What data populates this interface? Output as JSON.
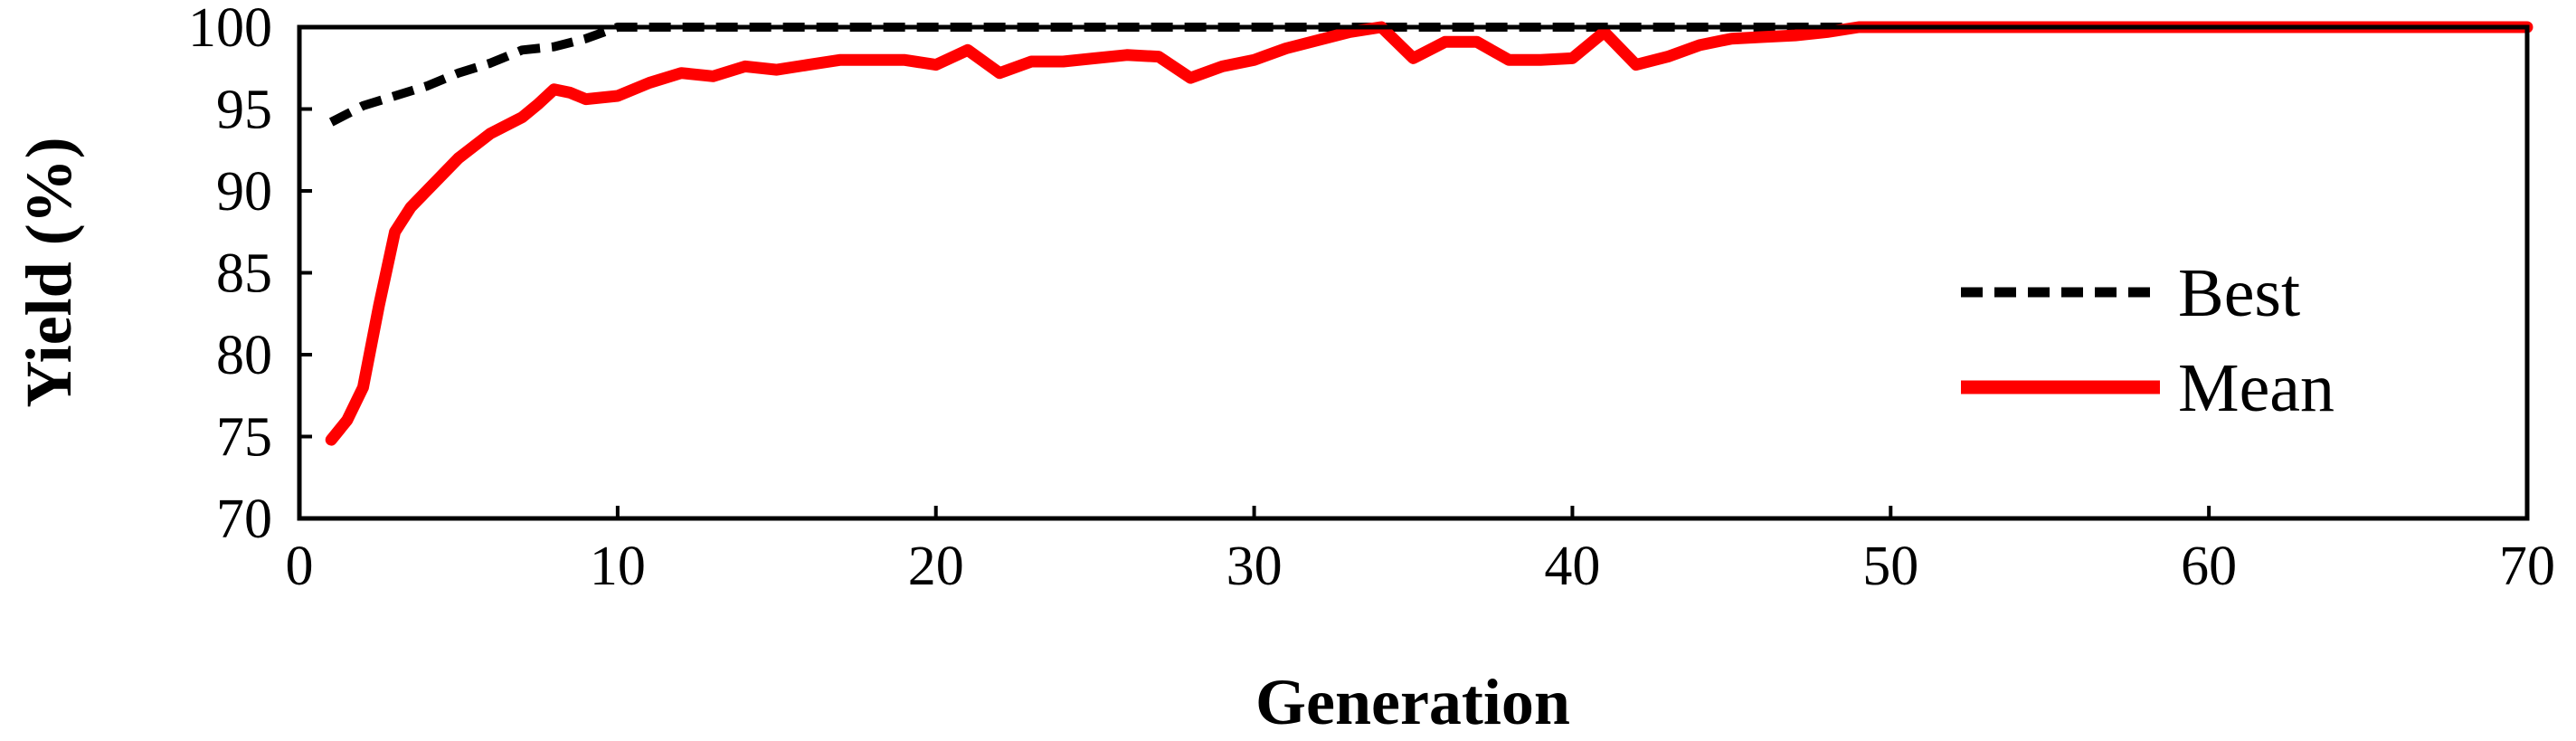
{
  "colors": {
    "best": "#000000",
    "mean": "#ff0000",
    "axis": "#000000",
    "background": "#ffffff"
  },
  "chart_data": {
    "type": "line",
    "title": "",
    "xlabel": "Generation",
    "ylabel": "Yield (%)",
    "xlim": [
      0,
      70
    ],
    "ylim": [
      70,
      100
    ],
    "xticks": [
      0,
      10,
      20,
      30,
      40,
      50,
      60,
      70
    ],
    "yticks": [
      70,
      75,
      80,
      85,
      90,
      95,
      100
    ],
    "grid": false,
    "legend": "right",
    "series": [
      {
        "name": "Best",
        "style": "dashed",
        "color": "#000000",
        "points": [
          [
            1,
            94.2
          ],
          [
            2,
            95.2
          ],
          [
            3,
            95.8
          ],
          [
            4,
            96.4
          ],
          [
            5,
            97.2
          ],
          [
            6,
            97.8
          ],
          [
            7,
            98.6
          ],
          [
            8,
            98.8
          ],
          [
            9,
            99.3
          ],
          [
            10,
            100
          ],
          [
            12,
            100
          ],
          [
            20,
            100
          ],
          [
            30,
            100
          ],
          [
            40,
            100
          ],
          [
            48,
            100
          ],
          [
            50,
            100
          ]
        ]
      },
      {
        "name": "Mean",
        "style": "solid",
        "color": "#ff0000",
        "points": [
          [
            1,
            74.8
          ],
          [
            1.5,
            76.0
          ],
          [
            2,
            78.0
          ],
          [
            2.5,
            83.0
          ],
          [
            3,
            87.5
          ],
          [
            3.5,
            89.0
          ],
          [
            4,
            90.0
          ],
          [
            5,
            92.0
          ],
          [
            6,
            93.5
          ],
          [
            7,
            94.5
          ],
          [
            7.5,
            95.3
          ],
          [
            8,
            96.2
          ],
          [
            8.5,
            96.0
          ],
          [
            9,
            95.6
          ],
          [
            10,
            95.8
          ],
          [
            11,
            96.6
          ],
          [
            12,
            97.2
          ],
          [
            13,
            97.0
          ],
          [
            14,
            97.6
          ],
          [
            15,
            97.4
          ],
          [
            16,
            97.7
          ],
          [
            17,
            98.0
          ],
          [
            18,
            98.0
          ],
          [
            19,
            98.0
          ],
          [
            20,
            97.7
          ],
          [
            21,
            98.6
          ],
          [
            22,
            97.2
          ],
          [
            23,
            97.9
          ],
          [
            24,
            97.9
          ],
          [
            25,
            98.1
          ],
          [
            26,
            98.3
          ],
          [
            27,
            98.2
          ],
          [
            28,
            96.9
          ],
          [
            29,
            97.6
          ],
          [
            30,
            98.0
          ],
          [
            31,
            98.7
          ],
          [
            32,
            99.2
          ],
          [
            33,
            99.7
          ],
          [
            34,
            100
          ],
          [
            35,
            98.1
          ],
          [
            36,
            99.1
          ],
          [
            37,
            99.1
          ],
          [
            38,
            98.0
          ],
          [
            39,
            98.0
          ],
          [
            40,
            98.1
          ],
          [
            41,
            99.7
          ],
          [
            42,
            97.7
          ],
          [
            43,
            98.2
          ],
          [
            44,
            98.9
          ],
          [
            45,
            99.3
          ],
          [
            46,
            99.4
          ],
          [
            47,
            99.5
          ],
          [
            48,
            99.7
          ],
          [
            49,
            100
          ],
          [
            50,
            100
          ],
          [
            55,
            100
          ],
          [
            60,
            100
          ],
          [
            70,
            100
          ]
        ]
      }
    ]
  }
}
